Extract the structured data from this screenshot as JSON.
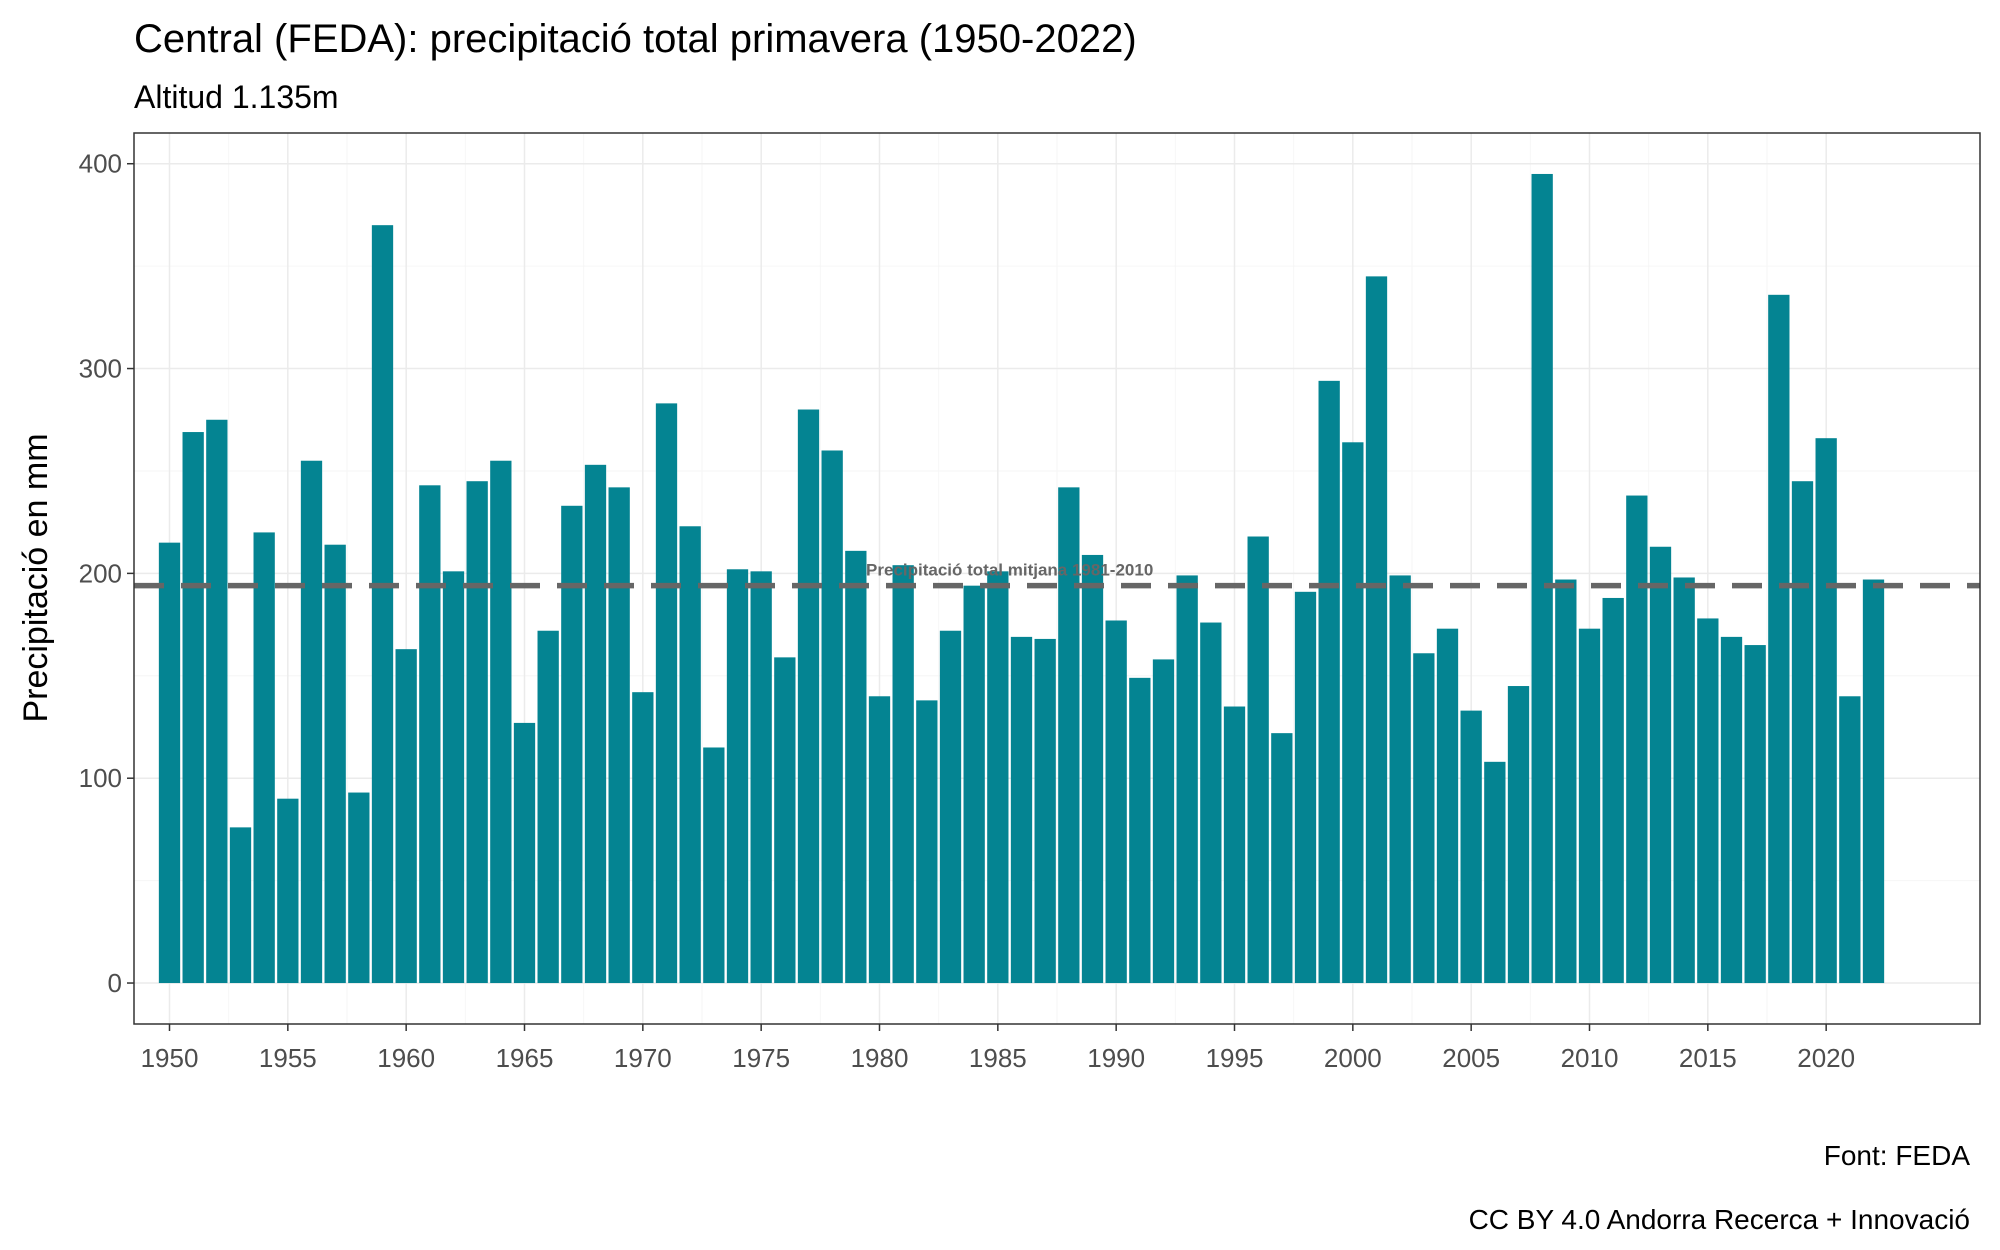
{
  "chart_data": {
    "type": "bar",
    "title": "Central (FEDA): precipitació total primavera (1950-2022)",
    "subtitle": "Altitud 1.135m",
    "xlabel": "",
    "ylabel": "Precipitació en mm",
    "x": [
      1950,
      1951,
      1952,
      1953,
      1954,
      1955,
      1956,
      1957,
      1958,
      1959,
      1960,
      1961,
      1962,
      1963,
      1964,
      1965,
      1966,
      1967,
      1968,
      1969,
      1970,
      1971,
      1972,
      1973,
      1974,
      1975,
      1976,
      1977,
      1978,
      1979,
      1980,
      1981,
      1982,
      1983,
      1984,
      1985,
      1986,
      1987,
      1988,
      1989,
      1990,
      1991,
      1992,
      1993,
      1994,
      1995,
      1996,
      1997,
      1998,
      1999,
      2000,
      2001,
      2002,
      2003,
      2004,
      2005,
      2006,
      2007,
      2008,
      2009,
      2010,
      2011,
      2012,
      2013,
      2014,
      2015,
      2016,
      2017,
      2018,
      2019,
      2020,
      2021,
      2022
    ],
    "values": [
      215,
      269,
      275,
      76,
      220,
      90,
      255,
      214,
      93,
      370,
      163,
      243,
      201,
      245,
      255,
      127,
      172,
      233,
      253,
      242,
      142,
      283,
      223,
      115,
      202,
      201,
      159,
      280,
      260,
      211,
      140,
      204,
      138,
      172,
      194,
      201,
      169,
      168,
      242,
      209,
      177,
      149,
      158,
      199,
      176,
      135,
      218,
      122,
      191,
      294,
      264,
      345,
      199,
      161,
      173,
      133,
      108,
      145,
      395,
      197,
      173,
      188,
      238,
      213,
      198,
      178,
      169,
      165,
      336,
      245,
      266,
      140,
      197
    ],
    "xlim": [
      1948.5,
      2026.5
    ],
    "ylim": [
      -20,
      415
    ],
    "x_ticks": [
      1950,
      1955,
      1960,
      1965,
      1970,
      1975,
      1980,
      1985,
      1990,
      1995,
      2000,
      2005,
      2010,
      2015,
      2020
    ],
    "y_ticks": [
      0,
      100,
      200,
      300,
      400
    ],
    "bar_color": "#048492",
    "grid": true,
    "reference_line": {
      "value": 194,
      "label": "Precipitació total mitjana 1981-2010",
      "label_x": 1985.5,
      "color": "#666666",
      "style": "dashed"
    },
    "caption": [
      "Font: FEDA",
      "CC BY 4.0 Andorra Recerca + Innovació"
    ]
  }
}
